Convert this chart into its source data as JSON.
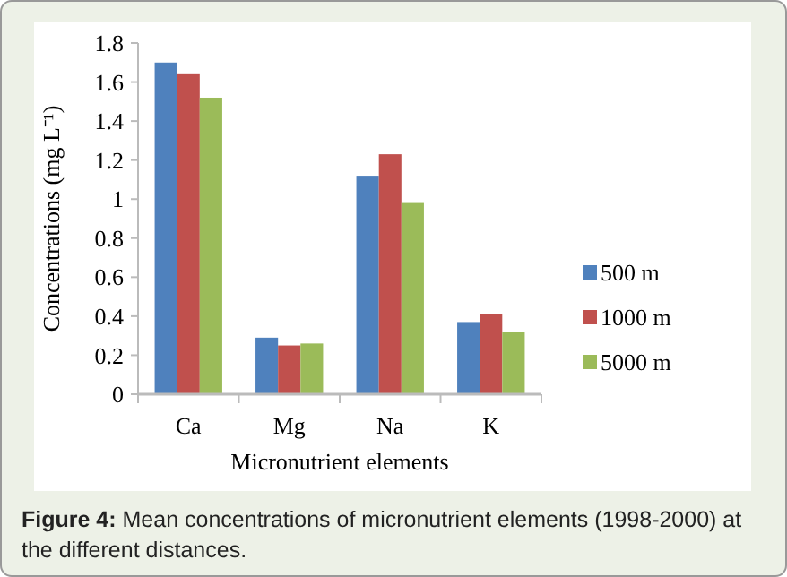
{
  "chart_data": {
    "type": "bar",
    "xlabel": "Micronutrient elements",
    "ylabel": "Concentrations (mg L⁻¹)",
    "categories": [
      "Ca",
      "Mg",
      "Na",
      "K"
    ],
    "series": [
      {
        "name": "500 m",
        "color": "#4f81bd",
        "values": [
          1.7,
          0.29,
          1.12,
          0.37
        ]
      },
      {
        "name": "1000 m",
        "color": "#c0504d",
        "values": [
          1.64,
          0.25,
          1.23,
          0.41
        ]
      },
      {
        "name": "5000 m",
        "color": "#9bbb59",
        "values": [
          1.52,
          0.26,
          0.98,
          0.32
        ]
      }
    ],
    "ylim": [
      0,
      1.8
    ],
    "yticks": [
      0,
      0.2,
      0.4,
      0.6,
      0.8,
      1,
      1.2,
      1.4,
      1.6,
      1.8
    ],
    "legend": "right",
    "grid": false,
    "annotations": [
      "Figure 4: Mean concentrations of micronutrient elements (1998-2000) at the different distances."
    ]
  }
}
